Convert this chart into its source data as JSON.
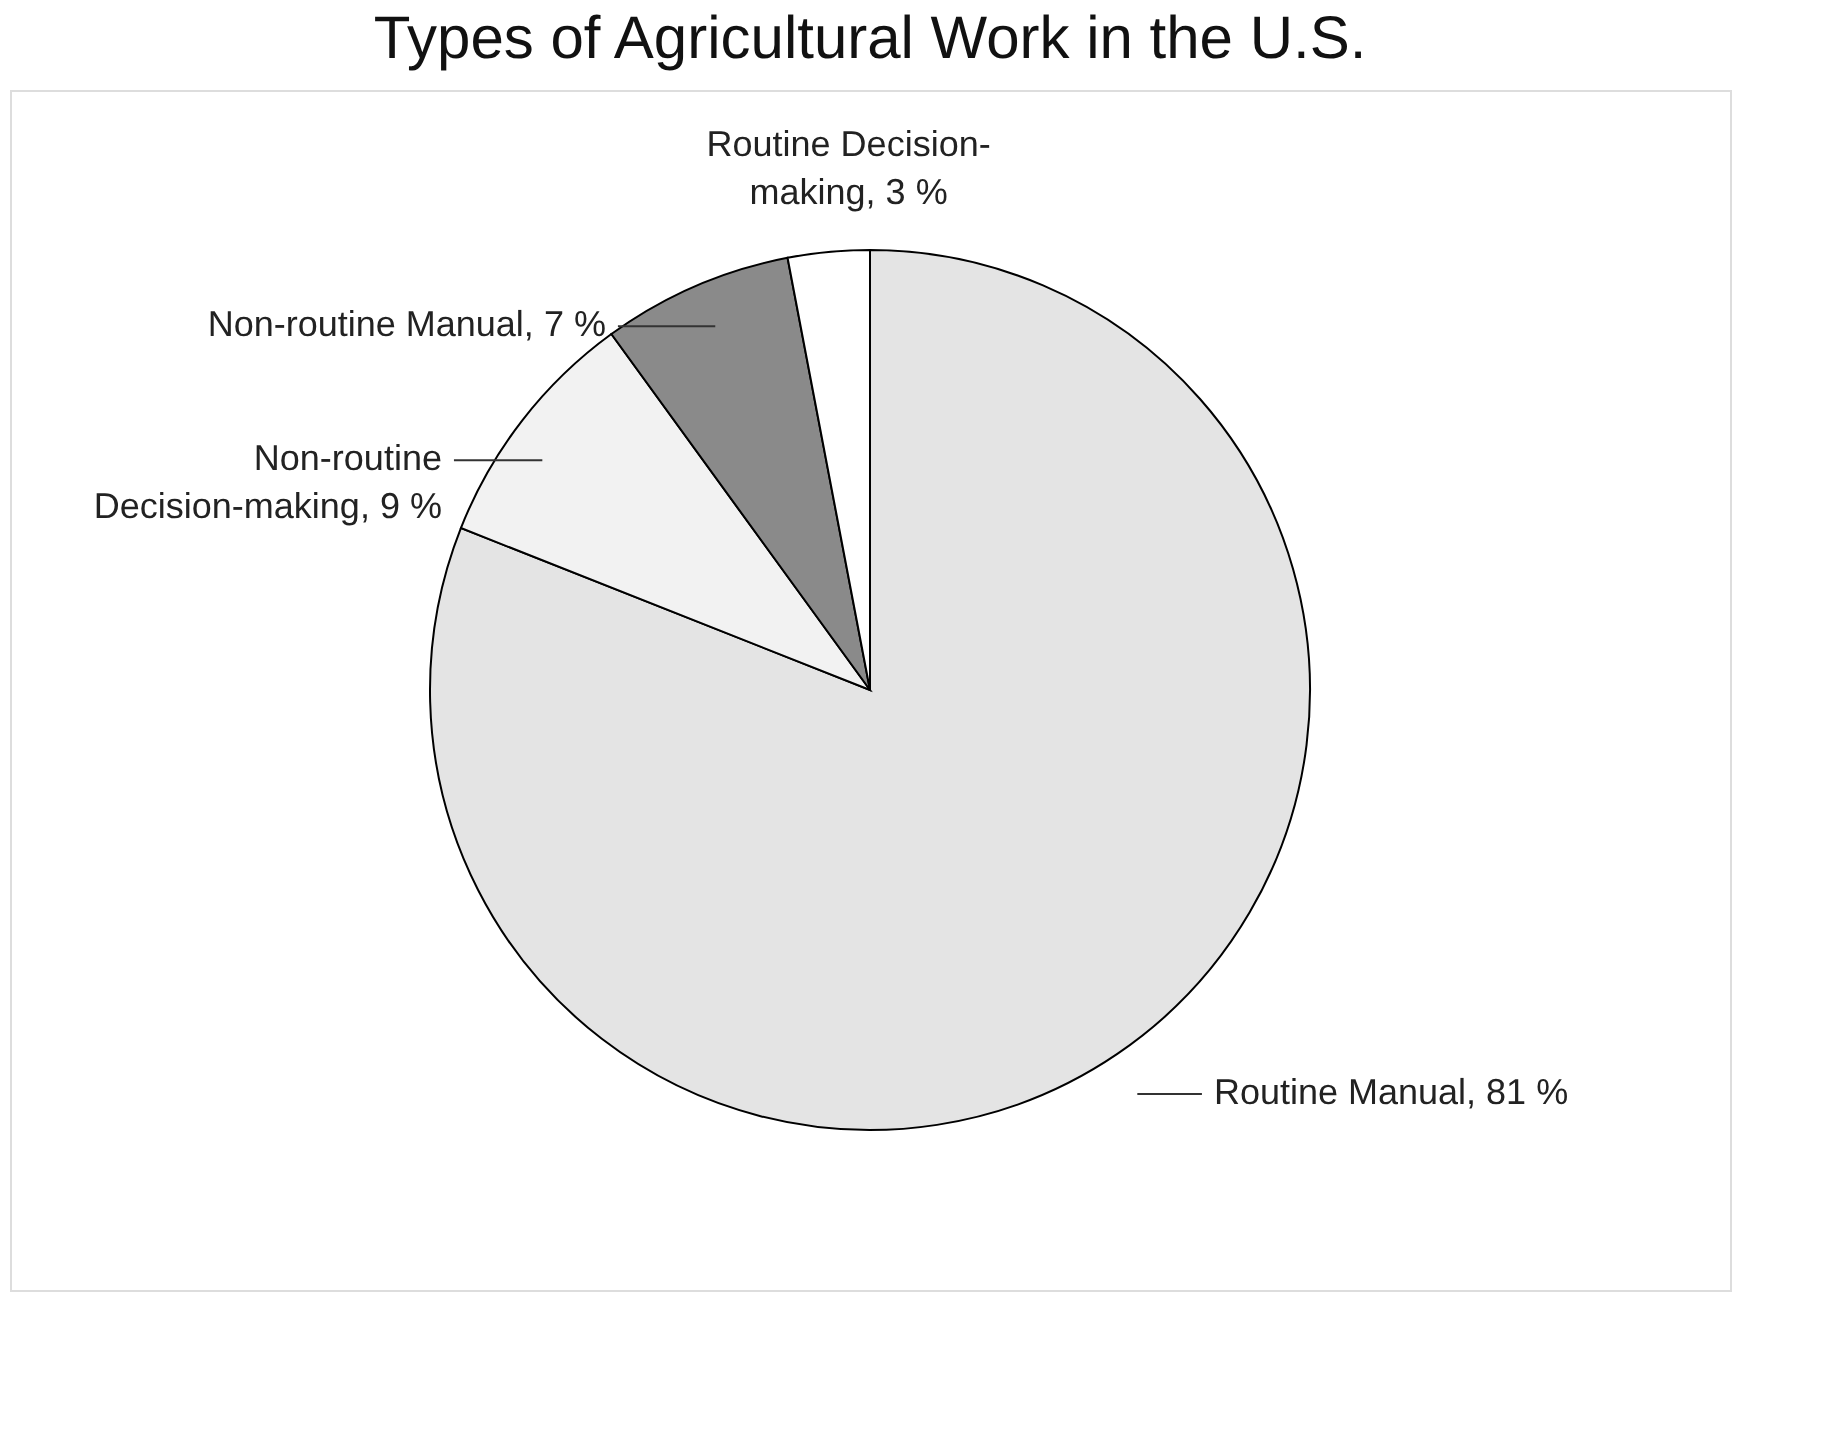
{
  "chart_data": {
    "type": "pie",
    "title": "Types of Agricultural Work in the U.S.",
    "categories": [
      "Routine Manual",
      "Non-routine Decision-making",
      "Non-routine Manual",
      "Routine Decision-making"
    ],
    "values": [
      81,
      9,
      7,
      3
    ],
    "value_labels": [
      "81 %",
      "9 %",
      "7 %",
      "3 %"
    ],
    "colors": [
      "#e4e4e4",
      "#f2f2f2",
      "#8a8a8a",
      "#ffffff"
    ],
    "legend": false
  }
}
